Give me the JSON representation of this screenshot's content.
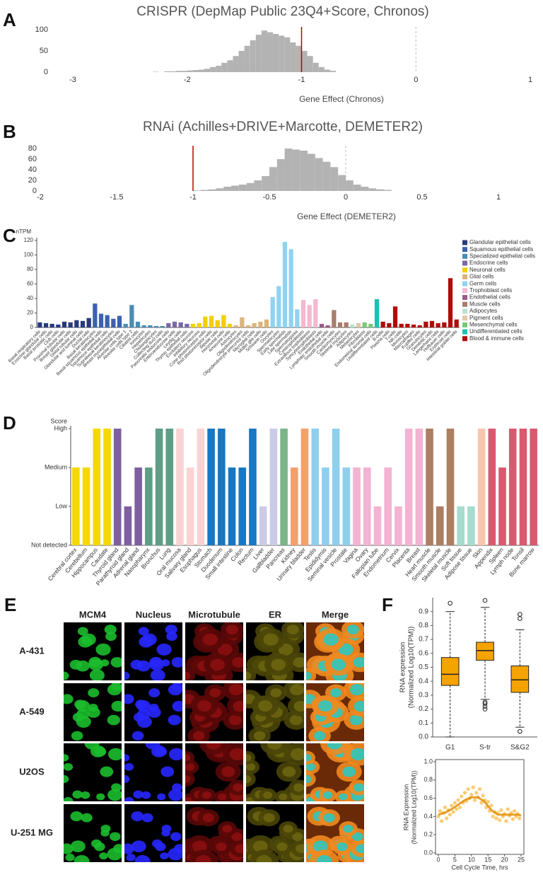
{
  "chart_data": [
    {
      "label": "A",
      "type": "histogram",
      "title": "CRISPR (DepMap Public 23Q4+Score, Chronos)",
      "xlabel": "Gene Effect (Chronos)",
      "bins": [
        -2.3,
        -2.25,
        -2.2,
        -2.15,
        -2.1,
        -2.05,
        -2,
        -1.95,
        -1.9,
        -1.85,
        -1.8,
        -1.75,
        -1.7,
        -1.65,
        -1.6,
        -1.55,
        -1.5,
        -1.45,
        -1.4,
        -1.35,
        -1.3,
        -1.25,
        -1.2,
        -1.15,
        -1.1,
        -1.05,
        -1,
        -0.95,
        -0.9,
        -0.85,
        -0.8,
        -0.75,
        -0.7
      ],
      "counts": [
        1,
        0,
        2,
        2,
        3,
        3,
        4,
        5,
        6,
        8,
        12,
        15,
        22,
        28,
        38,
        50,
        62,
        75,
        88,
        98,
        94,
        90,
        86,
        82,
        70,
        62,
        50,
        38,
        22,
        12,
        6,
        3
      ],
      "color": "#b3b3b3",
      "xlim": [
        -3,
        1
      ],
      "xticks": [
        -3,
        -2,
        -1,
        0,
        1
      ],
      "ylim": [
        0,
        100
      ],
      "yticks": [
        0,
        50,
        100
      ],
      "reference_lines": [
        {
          "value": -1,
          "color": "#c00000"
        },
        {
          "value": 0,
          "color": "#bbbbbb",
          "style": "dashed"
        }
      ]
    },
    {
      "label": "B",
      "type": "histogram",
      "title": "RNAi (Achilles+DRIVE+Marcotte, DEMETER2)",
      "xlabel": "Gene Effect (DEMETER2)",
      "bins": [
        -1,
        -0.95,
        -0.9,
        -0.85,
        -0.8,
        -0.75,
        -0.7,
        -0.65,
        -0.6,
        -0.55,
        -0.5,
        -0.45,
        -0.4,
        -0.35,
        -0.3,
        -0.25,
        -0.2,
        -0.15,
        -0.1,
        -0.05,
        0,
        0.05,
        0.1,
        0.15,
        0.2,
        0.25,
        0.3
      ],
      "counts": [
        1,
        2,
        3,
        5,
        8,
        10,
        12,
        15,
        20,
        28,
        45,
        60,
        80,
        78,
        76,
        70,
        62,
        55,
        45,
        30,
        20,
        12,
        8,
        5,
        3,
        2
      ],
      "color": "#b3b3b3",
      "xlim": [
        -2,
        1
      ],
      "xticks": [
        -2,
        -1.5,
        -1,
        -0.5,
        0,
        0.5,
        1
      ],
      "ylim": [
        0,
        80
      ],
      "yticks": [
        0,
        20,
        40,
        60,
        80
      ],
      "reference_lines": [
        {
          "value": -1,
          "color": "#c00000"
        },
        {
          "value": 0,
          "color": "#bbbbbb",
          "style": "dashed"
        }
      ]
    },
    {
      "label": "C",
      "type": "bar",
      "ylabel": "nTPM",
      "ylim": [
        0,
        120
      ],
      "yticks": [
        0,
        20,
        40,
        60,
        80,
        100,
        120
      ],
      "legend": "right",
      "series": [
        {
          "name": "Glandular epithelial cells",
          "color": "#283a7e",
          "categories": [
            "Basal respiratory cells",
            "Exocrine glandular cells",
            "Basal prostatic cells",
            "Club cells",
            "Proximal tubular cells",
            "Breast glandular cells",
            "Distal tubular cells",
            "Glandular and luminal cells",
            "Ductal cells"
          ],
          "values": [
            7,
            6,
            5,
            4,
            8,
            7,
            10,
            9,
            13
          ]
        },
        {
          "name": "Squamous epithelial cells",
          "color": "#3d62ad",
          "categories": [
            "Basal keratinocytes",
            "Basal squamous epithelial cells",
            "Squamous epithelial cells",
            "Suprabasal keratinocytes",
            "Breast myoepithelial cells"
          ],
          "values": [
            33,
            19,
            17,
            12,
            16
          ]
        },
        {
          "name": "Specialized epithelial cells",
          "color": "#4a8db5",
          "categories": [
            "Alveolar cells type 1",
            "Alveolar cells type 2",
            "Ciliated cells",
            "Ionocytes",
            "Hepatocytes",
            "Cholangiocytes",
            "Collecting duct cells"
          ],
          "values": [
            5,
            31,
            8,
            3,
            3,
            2,
            2
          ]
        },
        {
          "name": "Endocrine cells",
          "color": "#7a68a6",
          "categories": [
            "Pancreatic endocrine cells",
            "Enteroendocrine cells",
            "Leydig cells",
            "Thymic epithelial cells"
          ],
          "values": [
            6,
            8,
            7,
            5
          ]
        },
        {
          "name": "Neuronal cells",
          "color": "#f2cf00",
          "categories": [
            "Excitatory neurons",
            "Inhibitory neurons",
            "Cone photoreceptor cells",
            "Rod photoreceptor cells",
            "Bipolar cells",
            "Horizontal cells",
            "Amacrine cells"
          ],
          "values": [
            5,
            6,
            15,
            16,
            10,
            17,
            5
          ]
        },
        {
          "name": "Glial cells",
          "color": "#dcb47a",
          "categories": [
            "Astrocytes",
            "Oligodendrocytes",
            "Oligodendrocyte precursor cells",
            "Microglial cells",
            "Müller glia cells",
            "Schwann cells"
          ],
          "values": [
            3,
            14,
            3,
            6,
            8,
            11
          ]
        },
        {
          "name": "Germ cells",
          "color": "#8fd3f2",
          "categories": [
            "Oocytes",
            "Spermatocytes",
            "Early spermatids",
            "Late spermatids",
            "Spermatogonia"
          ],
          "values": [
            42,
            57,
            118,
            108,
            25
          ]
        },
        {
          "name": "Trophoblast cells",
          "color": "#f4b8d0",
          "categories": [
            "Cytotrophoblasts",
            "Extravillous trophoblasts",
            "Syncytiotrophoblasts"
          ],
          "values": [
            38,
            31,
            39
          ]
        },
        {
          "name": "Endothelial cells",
          "color": "#9a5c86",
          "categories": [
            "Endothelial cells",
            "Lymphatic endothelial cells"
          ],
          "values": [
            5,
            3
          ]
        },
        {
          "name": "Muscle cells",
          "color": "#a87c6e",
          "categories": [
            "Smooth muscle cells",
            "Cardiomyocytes",
            "Skeletal myocytes"
          ],
          "values": [
            24,
            7,
            7
          ]
        },
        {
          "name": "Adipocytes",
          "color": "#b8e2d2",
          "categories": [
            "Adipocytes"
          ],
          "values": [
            4
          ]
        },
        {
          "name": "Pigment cells",
          "color": "#e0c8a8",
          "categories": [
            "Melanocytes"
          ],
          "values": [
            6
          ]
        },
        {
          "name": "Mesenchymal cells",
          "color": "#78c878",
          "categories": [
            "Fibroblasts",
            "Endometrial stromal cells"
          ],
          "values": [
            7,
            5
          ]
        },
        {
          "name": "Undifferentiated cells",
          "color": "#16c2b2",
          "categories": [
            "Undifferentiated cells"
          ],
          "values": [
            39
          ]
        },
        {
          "name": "Blood & immune cells",
          "color": "#b00a0a",
          "categories": [
            "B-cells",
            "Plasma cells",
            "T-cells",
            "NK-cells",
            "Monocytes",
            "Macrophages",
            "Kupffer cells",
            "Granulocytes",
            "Dendritic cells",
            "Langerhans cells",
            "Hofbauer cells",
            "Erythroid cells",
            "Intestinal goblet cells"
          ],
          "values": [
            8,
            6,
            29,
            5,
            5,
            4,
            3,
            8,
            9,
            6,
            7,
            68,
            11
          ]
        }
      ]
    },
    {
      "label": "D",
      "type": "bar",
      "ylabel": "Score",
      "ylim": [
        0,
        3
      ],
      "yticks": [
        {
          "value": 0,
          "label": "Not detected"
        },
        {
          "value": 1,
          "label": "Low"
        },
        {
          "value": 2,
          "label": "Medium"
        },
        {
          "value": 3,
          "label": "High"
        }
      ],
      "categories": [
        "Cerebral cortex",
        "Cerebellum",
        "Hippocampus",
        "Caudate",
        "Thyroid gland",
        "Parathyroid gland",
        "Adrenal gland",
        "Nasopharynx",
        "Bronchus",
        "Lung",
        "Oral mucosa",
        "Salivary gland",
        "Esophagus",
        "Stomach",
        "Duodenum",
        "Small intestine",
        "Colon",
        "Rectum",
        "Liver",
        "Gallbladder",
        "Pancreas",
        "Kidney",
        "Urinary bladder",
        "Testis",
        "Epididymis",
        "Seminal vesicle",
        "Prostate",
        "Vagina",
        "Ovary",
        "Fallopian tube",
        "Endometrium",
        "Cervix",
        "Placenta",
        "Breast",
        "Heart muscle",
        "Smooth muscle",
        "Skeletal muscle",
        "Soft tissue",
        "Adipose tissue",
        "Skin",
        "Appendix",
        "Spleen",
        "Lymph node",
        "Tonsil",
        "Bone marrow"
      ],
      "values": [
        2,
        2,
        3,
        3,
        3,
        1,
        2,
        2,
        3,
        3,
        3,
        2,
        3,
        3,
        3,
        2,
        2,
        3,
        1,
        3,
        3,
        2,
        3,
        3,
        2,
        3,
        2,
        2,
        2,
        1,
        2,
        1,
        3,
        3,
        3,
        1,
        3,
        1,
        1,
        3,
        3,
        2,
        3,
        3,
        3
      ],
      "colors": [
        "#f5d800",
        "#f5d800",
        "#f5d800",
        "#f5d800",
        "#7e5fa0",
        "#7e5fa0",
        "#7e5fa0",
        "#5e9e86",
        "#5e9e86",
        "#5e9e86",
        "#f9d3d3",
        "#f9d3d3",
        "#f9d3d3",
        "#1678c4",
        "#1678c4",
        "#1678c4",
        "#1678c4",
        "#1678c4",
        "#cccbe6",
        "#cccbe6",
        "#7db58a",
        "#f4a06a",
        "#f4a06a",
        "#8ecfee",
        "#8ecfee",
        "#8ecfee",
        "#8ecfee",
        "#f3b3d2",
        "#f3b3d2",
        "#f3b3d2",
        "#f3b3d2",
        "#f3b3d2",
        "#f3b3d2",
        "#f3b3d2",
        "#ad7e62",
        "#ad7e62",
        "#ad7e62",
        "#a5dccd",
        "#a5dccd",
        "#f8c6ae",
        "#d85a6e",
        "#d85a6e",
        "#d85a6e",
        "#d85a6e",
        "#d85a6e"
      ]
    },
    {
      "label": "F",
      "type": "box",
      "ylabel": [
        "RNA expression",
        "(Normalized Log10(TPM))"
      ],
      "color": "#f5a300",
      "categories": [
        "G1",
        "S-tr",
        "S&G2"
      ],
      "ylim": [
        0,
        1
      ],
      "yticks": [
        {
          "value": 0,
          "label": "0.0"
        },
        0.1,
        0.2,
        0.3,
        0.4,
        0.5,
        0.6,
        0.7,
        0.8,
        0.9
      ],
      "boxes": [
        {
          "whislo": 0.0,
          "q1": 0.37,
          "med": 0.45,
          "q3": 0.57,
          "whishi": 0.9,
          "fliers": [
            0.96
          ]
        },
        {
          "whislo": 0.27,
          "q1": 0.55,
          "med": 0.62,
          "q3": 0.68,
          "whishi": 0.93,
          "fliers": [
            0.98,
            0.25,
            0.24,
            0.22,
            0.2
          ]
        },
        {
          "whislo": 0.07,
          "q1": 0.32,
          "med": 0.41,
          "q3": 0.51,
          "whishi": 0.77,
          "fliers": [
            0.88,
            0.85,
            0.04
          ]
        }
      ]
    },
    {
      "type": "scatter",
      "ylabel": [
        "RNA Expression",
        "(Normalized Log10(TPM))"
      ],
      "xlabel": "Cell Cycle Time, hrs",
      "color": "#f5a300",
      "xlim": [
        0,
        25
      ],
      "xticks": [
        0,
        5,
        10,
        15,
        20,
        25
      ],
      "ylim": [
        0,
        1
      ],
      "yticks": [
        {
          "value": 0,
          "label": "0.0"
        },
        0.2,
        0.4,
        0.6,
        0.8,
        {
          "value": 1,
          "label": "1.0"
        }
      ],
      "x": [
        0,
        0.5,
        1,
        1.5,
        2,
        2.5,
        3,
        3.5,
        4,
        4.5,
        5,
        5.5,
        6,
        6.5,
        7,
        7.5,
        8,
        8.5,
        9,
        9.5,
        10,
        10.5,
        11,
        11.5,
        12,
        12.5,
        13,
        13.5,
        14,
        14.5,
        15,
        15.5,
        16,
        16.5,
        17,
        17.5,
        18,
        18.5,
        19,
        19.5,
        20,
        20.5,
        21,
        21.5,
        22,
        22.5,
        23,
        23.5,
        24,
        24.5
      ],
      "y": [
        0.4,
        0.46,
        0.35,
        0.44,
        0.5,
        0.38,
        0.47,
        0.42,
        0.52,
        0.45,
        0.55,
        0.48,
        0.58,
        0.5,
        0.62,
        0.55,
        0.66,
        0.57,
        0.7,
        0.6,
        0.64,
        0.72,
        0.58,
        0.66,
        0.61,
        0.7,
        0.55,
        0.63,
        0.58,
        0.5,
        0.56,
        0.46,
        0.52,
        0.4,
        0.45,
        0.38,
        0.44,
        0.36,
        0.47,
        0.4,
        0.43,
        0.35,
        0.48,
        0.41,
        0.44,
        0.37,
        0.46,
        0.4,
        0.43,
        0.38
      ],
      "trend": {
        "x": [
          0,
          2,
          4,
          6,
          8,
          10,
          12,
          14,
          16,
          18,
          20,
          22,
          24,
          25
        ],
        "y": [
          0.42,
          0.44,
          0.48,
          0.53,
          0.58,
          0.61,
          0.61,
          0.56,
          0.47,
          0.42,
          0.42,
          0.42,
          0.42,
          0.41
        ]
      }
    }
  ],
  "image_grid": {
    "label": "E",
    "columns": [
      "MCM4",
      "Nucleus",
      "Microtubule",
      "ER",
      "Merge"
    ],
    "rows": [
      "A-431",
      "A-549",
      "U2OS",
      "U-251 MG"
    ]
  }
}
